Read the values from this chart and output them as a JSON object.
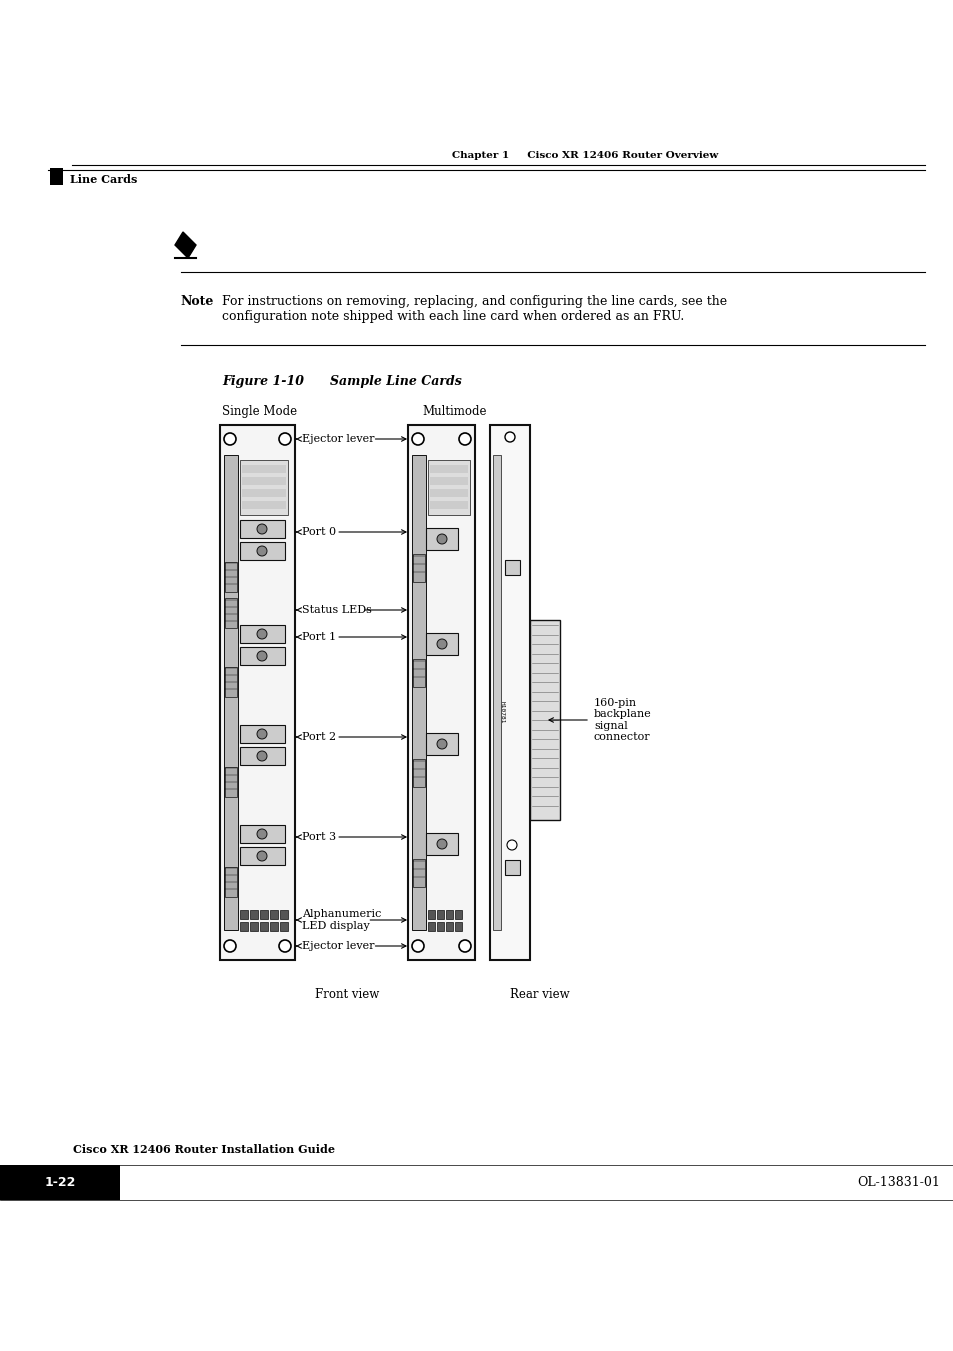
{
  "page_width": 9.54,
  "page_height": 13.51,
  "bg_color": "#ffffff",
  "header_text": "Chapter 1     Cisco XR 12406 Router Overview",
  "section_title": "Line Cards",
  "note_label": "Note",
  "note_text": "For instructions on removing, replacing, and configuring the line cards, see the\nconfiguration note shipped with each line card when ordered as an FRU.",
  "figure_label": "Figure 1-10",
  "figure_title": "Sample Line Cards",
  "single_mode_label": "Single Mode",
  "multimode_label": "Multimode",
  "front_view_label": "Front view",
  "rear_view_label": "Rear view",
  "footer_left": "Cisco XR 12406 Router Installation Guide",
  "footer_page": "1-22",
  "footer_right": "OL-13831-01",
  "right_annotation_text": "160-pin\nbackplane\nsignal\nconnector",
  "card_color": "#f5f5f5",
  "card_edge": "#111111",
  "dark_gray": "#444444",
  "med_gray": "#888888",
  "light_gray": "#cccccc"
}
